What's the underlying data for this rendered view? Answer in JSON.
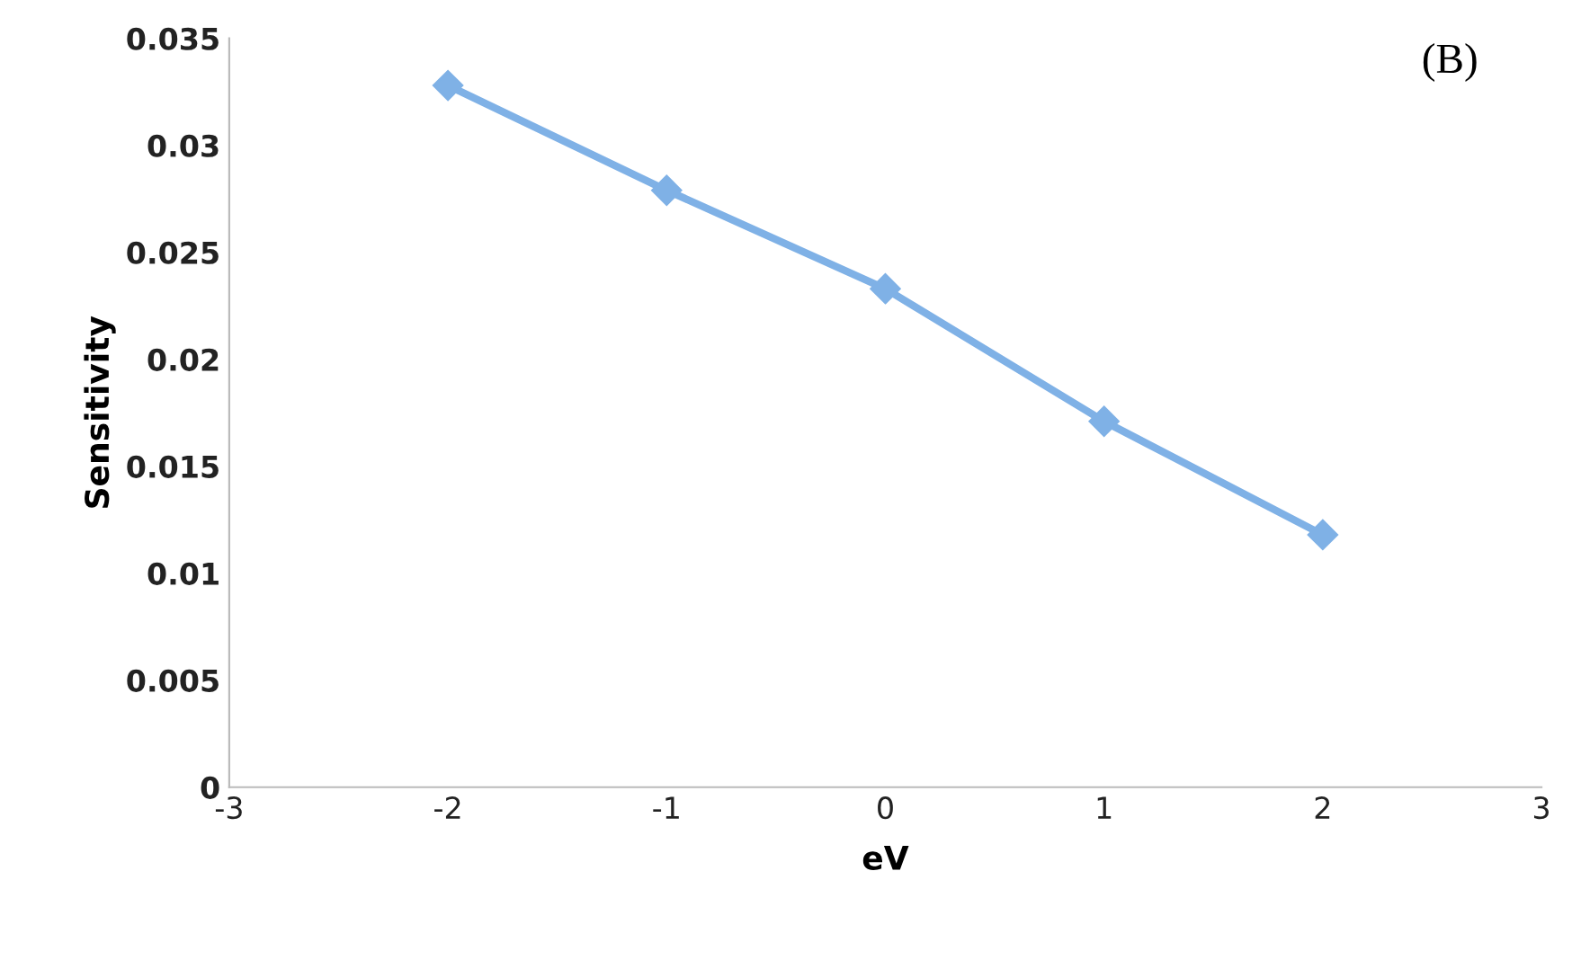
{
  "chart_data": {
    "type": "line",
    "xlabel": "eV",
    "ylabel": "Sensitivity",
    "annotations": [
      "(B)"
    ],
    "x": [
      -2,
      -1,
      0,
      1,
      2
    ],
    "series": [
      {
        "color": "#7fb1e6",
        "values": [
          0.0328,
          0.0279,
          0.0233,
          0.0171,
          0.0118
        ]
      }
    ],
    "xlim": [
      -3,
      3
    ],
    "xticks": [
      -3,
      -1,
      0,
      1,
      2,
      3,
      -2
    ],
    "ylim": [
      0,
      0.035
    ],
    "yticks": [
      0,
      0.005,
      0.01,
      0.015,
      0.02,
      0.025,
      0.03,
      0.035
    ],
    "marker": "diamond",
    "line_style": "solid",
    "grid": false,
    "legend": false
  }
}
